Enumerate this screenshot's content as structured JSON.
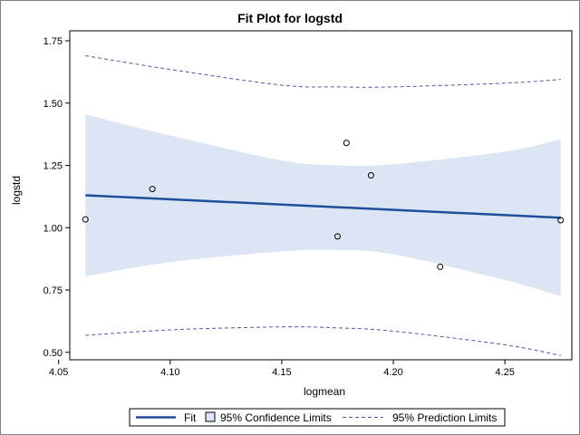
{
  "chart_data": {
    "type": "scatter",
    "title": "Fit Plot for logstd",
    "xlabel": "logmean",
    "ylabel": "logstd",
    "xlim": [
      4.055,
      4.28
    ],
    "ylim": [
      0.47,
      1.79
    ],
    "x_ticks": [
      4.05,
      4.1,
      4.15,
      4.2,
      4.25
    ],
    "x_tick_labels": [
      "4.05",
      "4.10",
      "4.15",
      "4.20",
      "4.25"
    ],
    "y_ticks": [
      0.5,
      0.75,
      1.0,
      1.25,
      1.5,
      1.75
    ],
    "y_tick_labels": [
      "0.50",
      "0.75",
      "1.00",
      "1.25",
      "1.50",
      "1.75"
    ],
    "grid": false,
    "legend_position": "bottom",
    "observations": {
      "x": [
        4.062,
        4.092,
        4.175,
        4.179,
        4.19,
        4.221,
        4.275
      ],
      "y": [
        1.033,
        1.155,
        0.965,
        1.34,
        1.21,
        0.843,
        1.03
      ]
    },
    "fit": {
      "x": [
        4.062,
        4.275
      ],
      "y": [
        1.13,
        1.04
      ]
    },
    "confidence_limits": {
      "x": [
        4.062,
        4.1,
        4.15,
        4.175,
        4.2,
        4.25,
        4.275
      ],
      "lower": [
        0.805,
        0.862,
        0.905,
        0.91,
        0.893,
        0.79,
        0.725
      ],
      "upper": [
        1.455,
        1.37,
        1.27,
        1.25,
        1.255,
        1.305,
        1.355
      ]
    },
    "prediction_limits": {
      "x": [
        4.062,
        4.1,
        4.15,
        4.175,
        4.2,
        4.25,
        4.275
      ],
      "lower": [
        0.568,
        0.59,
        0.602,
        0.598,
        0.585,
        0.53,
        0.487
      ],
      "upper": [
        1.69,
        1.635,
        1.572,
        1.565,
        1.565,
        1.58,
        1.595
      ]
    },
    "legend": [
      {
        "key": "fit",
        "label": "Fit"
      },
      {
        "key": "confidence",
        "label": "95% Confidence Limits"
      },
      {
        "key": "prediction",
        "label": "95% Prediction Limits"
      }
    ],
    "colors": {
      "fit": "#1f4e9c",
      "confidence_fill": "#dce5f3",
      "prediction": "#4a5d9c",
      "marker": "#000000"
    }
  }
}
